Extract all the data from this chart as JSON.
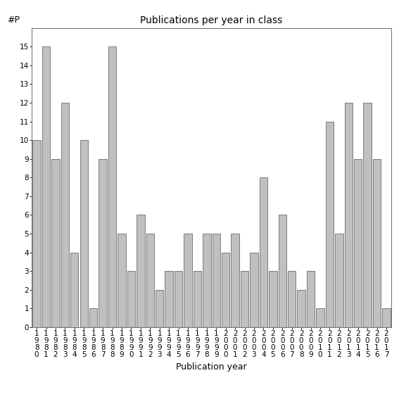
{
  "title": "Publications per year in class",
  "xlabel": "Publication year",
  "ylabel": "#P",
  "bar_color": "#c0c0c0",
  "edge_color": "#555555",
  "years": [
    1980,
    1981,
    1982,
    1983,
    1984,
    1985,
    1986,
    1987,
    1988,
    1989,
    1990,
    1991,
    1992,
    1993,
    1994,
    1995,
    1996,
    1997,
    1998,
    1999,
    2000,
    2001,
    2002,
    2003,
    2004,
    2005,
    2006,
    2007,
    2008,
    2009,
    2010,
    2011,
    2012,
    2013,
    2014,
    2015,
    2016,
    2017
  ],
  "values": [
    10,
    15,
    9,
    12,
    4,
    10,
    1,
    9,
    15,
    5,
    3,
    6,
    5,
    2,
    3,
    3,
    5,
    3,
    5,
    5,
    4,
    5,
    3,
    4,
    8,
    3,
    6,
    3,
    2,
    3,
    1,
    11,
    5,
    12,
    9,
    12,
    9,
    1
  ],
  "ylim": [
    0,
    16
  ],
  "yticks": [
    0,
    1,
    2,
    3,
    4,
    5,
    6,
    7,
    8,
    9,
    10,
    11,
    12,
    13,
    14,
    15
  ],
  "bg_color": "#ffffff",
  "bar_linewidth": 0.5,
  "title_fontsize": 10,
  "tick_fontsize": 7.5,
  "xlabel_fontsize": 9,
  "figsize": [
    5.67,
    5.67
  ],
  "dpi": 100
}
